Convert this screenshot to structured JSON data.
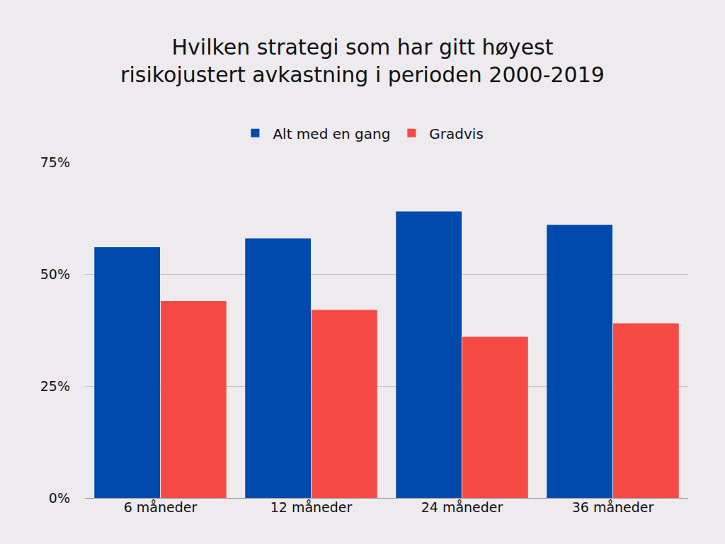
{
  "chart_data": {
    "type": "bar",
    "title": "Hvilken strategi som har gitt høyest risikojustert avkastning i perioden 2000-2019",
    "categories": [
      "6 måneder",
      "12 måneder",
      "24 måneder",
      "36 måneder"
    ],
    "series": [
      {
        "name": "Alt med en gang",
        "color": "#004aad",
        "values": [
          56,
          58,
          64,
          61
        ]
      },
      {
        "name": "Gradvis",
        "color": "#f84a45",
        "values": [
          44,
          42,
          36,
          39
        ]
      }
    ],
    "ylim": [
      0,
      75
    ],
    "yticks": [
      {
        "value": 0,
        "label": "0%"
      },
      {
        "value": 25,
        "label": "25%"
      },
      {
        "value": 50,
        "label": "50%"
      },
      {
        "value": 75,
        "label": "75%"
      }
    ],
    "grid": true,
    "legend": "top"
  }
}
